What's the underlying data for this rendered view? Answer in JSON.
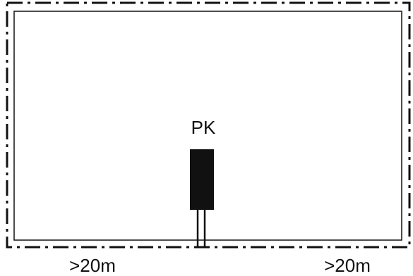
{
  "labels": {
    "device": "PK",
    "left_distance": ">20m",
    "right_distance": ">20m"
  },
  "colors": {
    "line": "#111111",
    "background": "#ffffff"
  }
}
